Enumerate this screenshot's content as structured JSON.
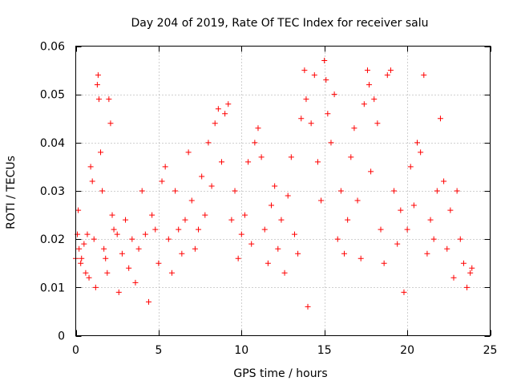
{
  "chart_data": {
    "type": "scatter",
    "title": "Day 204 of 2019, Rate Of TEC Index for receiver salu",
    "xlabel": "GPS time / hours",
    "ylabel": "ROTI / TECUs",
    "xlim": [
      0,
      25
    ],
    "ylim": [
      0,
      0.06
    ],
    "x_ticks": [
      0,
      5,
      10,
      15,
      20,
      25
    ],
    "y_ticks": [
      0,
      0.01,
      0.02,
      0.03,
      0.04,
      0.05,
      0.06
    ],
    "x_tick_labels": [
      "0",
      "5",
      "10",
      "15",
      "20",
      "25"
    ],
    "y_tick_labels": [
      "0",
      "0.01",
      "0.02",
      "0.03",
      "0.04",
      "0.05",
      "0.06"
    ],
    "grid": true,
    "marker": "+",
    "series": [
      {
        "name": "ROTI",
        "color": "#ff0000",
        "points": [
          [
            0.0,
            0.016
          ],
          [
            0.1,
            0.021
          ],
          [
            0.15,
            0.026
          ],
          [
            0.2,
            0.018
          ],
          [
            0.3,
            0.015
          ],
          [
            0.35,
            0.016
          ],
          [
            0.5,
            0.019
          ],
          [
            0.6,
            0.013
          ],
          [
            0.7,
            0.021
          ],
          [
            0.8,
            0.012
          ],
          [
            0.9,
            0.035
          ],
          [
            1.0,
            0.032
          ],
          [
            1.1,
            0.02
          ],
          [
            1.2,
            0.01
          ],
          [
            1.3,
            0.052
          ],
          [
            1.35,
            0.054
          ],
          [
            1.4,
            0.049
          ],
          [
            1.5,
            0.038
          ],
          [
            1.6,
            0.03
          ],
          [
            1.7,
            0.018
          ],
          [
            1.8,
            0.016
          ],
          [
            1.9,
            0.013
          ],
          [
            2.0,
            0.049
          ],
          [
            2.1,
            0.044
          ],
          [
            2.2,
            0.025
          ],
          [
            2.3,
            0.022
          ],
          [
            2.5,
            0.021
          ],
          [
            2.6,
            0.009
          ],
          [
            2.8,
            0.017
          ],
          [
            3.0,
            0.024
          ],
          [
            3.2,
            0.014
          ],
          [
            3.4,
            0.02
          ],
          [
            3.6,
            0.011
          ],
          [
            3.8,
            0.018
          ],
          [
            4.0,
            0.03
          ],
          [
            4.2,
            0.021
          ],
          [
            4.4,
            0.007
          ],
          [
            4.6,
            0.025
          ],
          [
            4.8,
            0.022
          ],
          [
            5.0,
            0.015
          ],
          [
            5.2,
            0.032
          ],
          [
            5.4,
            0.035
          ],
          [
            5.6,
            0.02
          ],
          [
            5.8,
            0.013
          ],
          [
            6.0,
            0.03
          ],
          [
            6.2,
            0.022
          ],
          [
            6.4,
            0.017
          ],
          [
            6.6,
            0.024
          ],
          [
            6.8,
            0.038
          ],
          [
            7.0,
            0.028
          ],
          [
            7.2,
            0.018
          ],
          [
            7.4,
            0.022
          ],
          [
            7.6,
            0.033
          ],
          [
            7.8,
            0.025
          ],
          [
            8.0,
            0.04
          ],
          [
            8.2,
            0.031
          ],
          [
            8.4,
            0.044
          ],
          [
            8.6,
            0.047
          ],
          [
            8.8,
            0.036
          ],
          [
            9.0,
            0.046
          ],
          [
            9.2,
            0.048
          ],
          [
            9.4,
            0.024
          ],
          [
            9.6,
            0.03
          ],
          [
            9.8,
            0.016
          ],
          [
            10.0,
            0.021
          ],
          [
            10.2,
            0.025
          ],
          [
            10.4,
            0.036
          ],
          [
            10.6,
            0.019
          ],
          [
            10.8,
            0.04
          ],
          [
            11.0,
            0.043
          ],
          [
            11.2,
            0.037
          ],
          [
            11.4,
            0.022
          ],
          [
            11.6,
            0.015
          ],
          [
            11.8,
            0.027
          ],
          [
            12.0,
            0.031
          ],
          [
            12.2,
            0.018
          ],
          [
            12.4,
            0.024
          ],
          [
            12.6,
            0.013
          ],
          [
            12.8,
            0.029
          ],
          [
            13.0,
            0.037
          ],
          [
            13.2,
            0.021
          ],
          [
            13.4,
            0.017
          ],
          [
            13.6,
            0.045
          ],
          [
            13.8,
            0.055
          ],
          [
            13.9,
            0.049
          ],
          [
            14.0,
            0.006
          ],
          [
            14.2,
            0.044
          ],
          [
            14.4,
            0.054
          ],
          [
            14.6,
            0.036
          ],
          [
            14.8,
            0.028
          ],
          [
            15.0,
            0.057
          ],
          [
            15.1,
            0.053
          ],
          [
            15.2,
            0.046
          ],
          [
            15.4,
            0.04
          ],
          [
            15.6,
            0.05
          ],
          [
            15.8,
            0.02
          ],
          [
            16.0,
            0.03
          ],
          [
            16.2,
            0.017
          ],
          [
            16.4,
            0.024
          ],
          [
            16.6,
            0.037
          ],
          [
            16.8,
            0.043
          ],
          [
            17.0,
            0.028
          ],
          [
            17.2,
            0.016
          ],
          [
            17.4,
            0.048
          ],
          [
            17.6,
            0.055
          ],
          [
            17.7,
            0.052
          ],
          [
            17.8,
            0.034
          ],
          [
            18.0,
            0.049
          ],
          [
            18.2,
            0.044
          ],
          [
            18.4,
            0.022
          ],
          [
            18.6,
            0.015
          ],
          [
            18.8,
            0.054
          ],
          [
            19.0,
            0.055
          ],
          [
            19.2,
            0.03
          ],
          [
            19.4,
            0.019
          ],
          [
            19.6,
            0.026
          ],
          [
            19.8,
            0.009
          ],
          [
            20.0,
            0.022
          ],
          [
            20.2,
            0.035
          ],
          [
            20.4,
            0.027
          ],
          [
            20.6,
            0.04
          ],
          [
            20.8,
            0.038
          ],
          [
            21.0,
            0.054
          ],
          [
            21.2,
            0.017
          ],
          [
            21.4,
            0.024
          ],
          [
            21.6,
            0.02
          ],
          [
            21.8,
            0.03
          ],
          [
            22.0,
            0.045
          ],
          [
            22.2,
            0.032
          ],
          [
            22.4,
            0.018
          ],
          [
            22.6,
            0.026
          ],
          [
            22.8,
            0.012
          ],
          [
            23.0,
            0.03
          ],
          [
            23.2,
            0.02
          ],
          [
            23.4,
            0.015
          ],
          [
            23.6,
            0.01
          ],
          [
            23.8,
            0.013
          ],
          [
            23.9,
            0.014
          ]
        ]
      }
    ]
  }
}
